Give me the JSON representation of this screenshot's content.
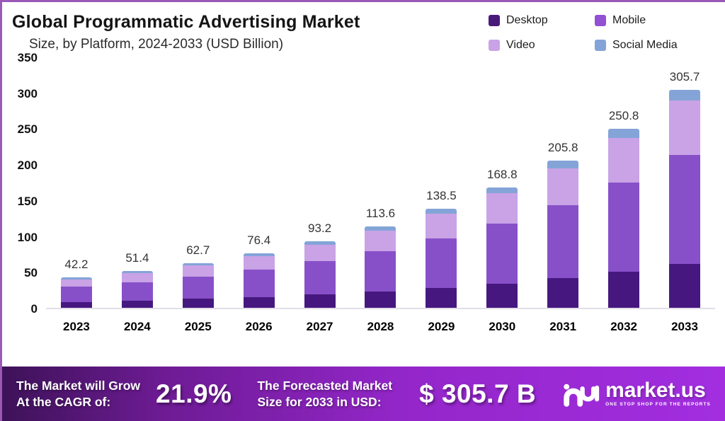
{
  "header": {
    "title": "Global Programmatic Advertising Market",
    "subtitle": "Size, by Platform, 2024-2033 (USD Billion)"
  },
  "legend": [
    {
      "label": "Desktop",
      "color": "#4a1a78"
    },
    {
      "label": "Mobile",
      "color": "#9350d2"
    },
    {
      "label": "Video",
      "color": "#c9a3e6"
    },
    {
      "label": "Social Media",
      "color": "#84a4d8"
    }
  ],
  "chart_data": {
    "type": "bar",
    "stacked": true,
    "title": "Global Programmatic Advertising Market Size, by Platform, 2024-2033 (USD Billion)",
    "categories": [
      "2023",
      "2024",
      "2025",
      "2026",
      "2027",
      "2028",
      "2029",
      "2030",
      "2031",
      "2032",
      "2033"
    ],
    "series": [
      {
        "name": "Desktop",
        "color": "#46187f",
        "values": [
          8.4,
          10.3,
          12.5,
          15.3,
          18.6,
          22.7,
          27.7,
          33.8,
          41.2,
          50.2,
          61.1
        ]
      },
      {
        "name": "Mobile",
        "color": "#8850c8",
        "values": [
          21.1,
          25.7,
          31.4,
          38.2,
          46.6,
          56.8,
          69.3,
          84.4,
          102.9,
          125.4,
          152.9
        ]
      },
      {
        "name": "Video",
        "color": "#c9a3e6",
        "values": [
          10.6,
          12.9,
          15.7,
          19.1,
          23.3,
          28.4,
          34.6,
          42.2,
          51.5,
          62.7,
          76.4
        ]
      },
      {
        "name": "Social Media",
        "color": "#84a4d8",
        "values": [
          2.1,
          2.5,
          3.1,
          3.8,
          4.7,
          5.7,
          6.9,
          8.4,
          10.2,
          12.5,
          15.3
        ]
      }
    ],
    "totals": [
      42.2,
      51.4,
      62.7,
      76.4,
      93.2,
      113.6,
      138.5,
      168.8,
      205.8,
      250.8,
      305.7
    ],
    "xlabel": "",
    "ylabel": "",
    "ylim": [
      0,
      350
    ],
    "yticks": [
      0,
      50,
      100,
      150,
      200,
      250,
      300,
      350
    ],
    "grid": false,
    "legend_position": "top-right"
  },
  "banner": {
    "cagr_label": "The Market will Grow\nAt the CAGR of:",
    "cagr_value": "21.9%",
    "forecast_label": "The Forecasted Market\nSize for 2033 in USD:",
    "forecast_value": "$ 305.7 B",
    "brand": "market.us",
    "brand_tagline": "ONE STOP SHOP FOR THE REPORTS",
    "gradient_left": "#3d1258",
    "gradient_right": "#a22ee0"
  }
}
